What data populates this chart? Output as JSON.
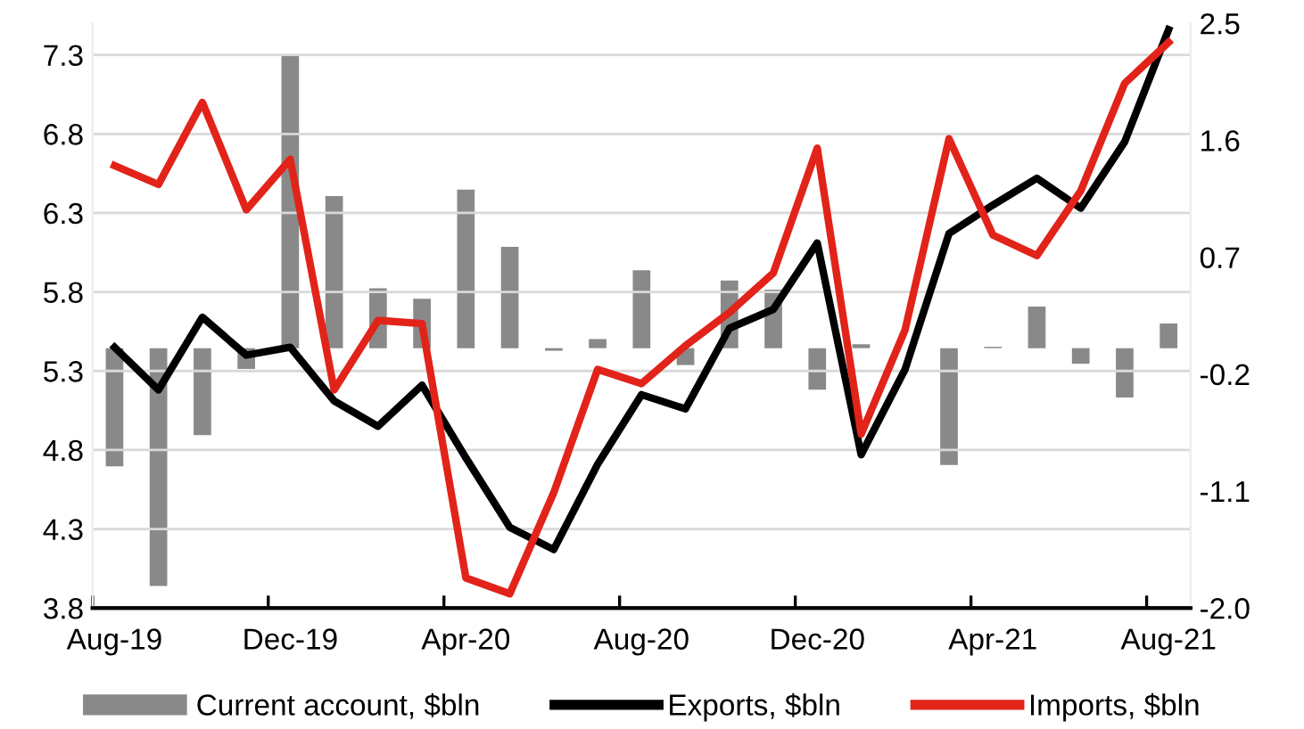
{
  "chart_data": {
    "type": "line",
    "categories": [
      "Aug-19",
      null,
      null,
      null,
      "Dec-19",
      null,
      null,
      null,
      "Apr-20",
      null,
      null,
      null,
      "Aug-20",
      null,
      null,
      null,
      "Dec-20",
      null,
      null,
      null,
      "Apr-21",
      null,
      null,
      null,
      "Aug-21"
    ],
    "series": [
      {
        "name": "Current account, $bln",
        "type": "bar",
        "axis": "y2",
        "color": "#898989",
        "values": [
          -0.91,
          -1.83,
          -0.67,
          -0.16,
          2.25,
          1.17,
          0.46,
          0.38,
          1.22,
          0.78,
          -0.02,
          0.07,
          0.6,
          -0.13,
          0.52,
          0.45,
          -0.32,
          0.03,
          0.0,
          -0.9,
          0.01,
          0.32,
          -0.12,
          -0.38,
          0.19
        ]
      },
      {
        "name": "Exports, $bln",
        "color": "#000000",
        "values": [
          5.45,
          5.18,
          5.64,
          5.4,
          5.45,
          5.11,
          4.95,
          5.21,
          4.75,
          4.31,
          4.17,
          4.71,
          5.15,
          5.06,
          5.57,
          5.69,
          6.11,
          4.77,
          5.31,
          6.17,
          6.35,
          6.52,
          6.33,
          6.75,
          7.46
        ]
      },
      {
        "name": "Imports, $bln",
        "color": "#e2231a",
        "values": [
          6.6,
          6.48,
          7.0,
          6.32,
          6.64,
          5.18,
          5.62,
          5.6,
          3.99,
          3.89,
          4.53,
          5.31,
          5.22,
          5.46,
          5.67,
          5.92,
          6.71,
          4.9,
          5.56,
          6.77,
          6.16,
          6.03,
          6.44,
          7.12,
          7.38
        ]
      }
    ],
    "ylim": [
      3.8,
      7.5
    ],
    "yticks": [
      3.8,
      4.3,
      4.8,
      5.3,
      5.8,
      6.3,
      6.8,
      7.3
    ],
    "y2lim": [
      -2.0,
      2.5
    ],
    "y2ticks": [
      {
        "value": -2.0,
        "label": "-2.0"
      },
      -1.1,
      -0.2,
      0.7,
      1.6,
      2.5
    ],
    "grid": "y",
    "legend": "bottom",
    "marker": "none",
    "line_style": "solid"
  }
}
